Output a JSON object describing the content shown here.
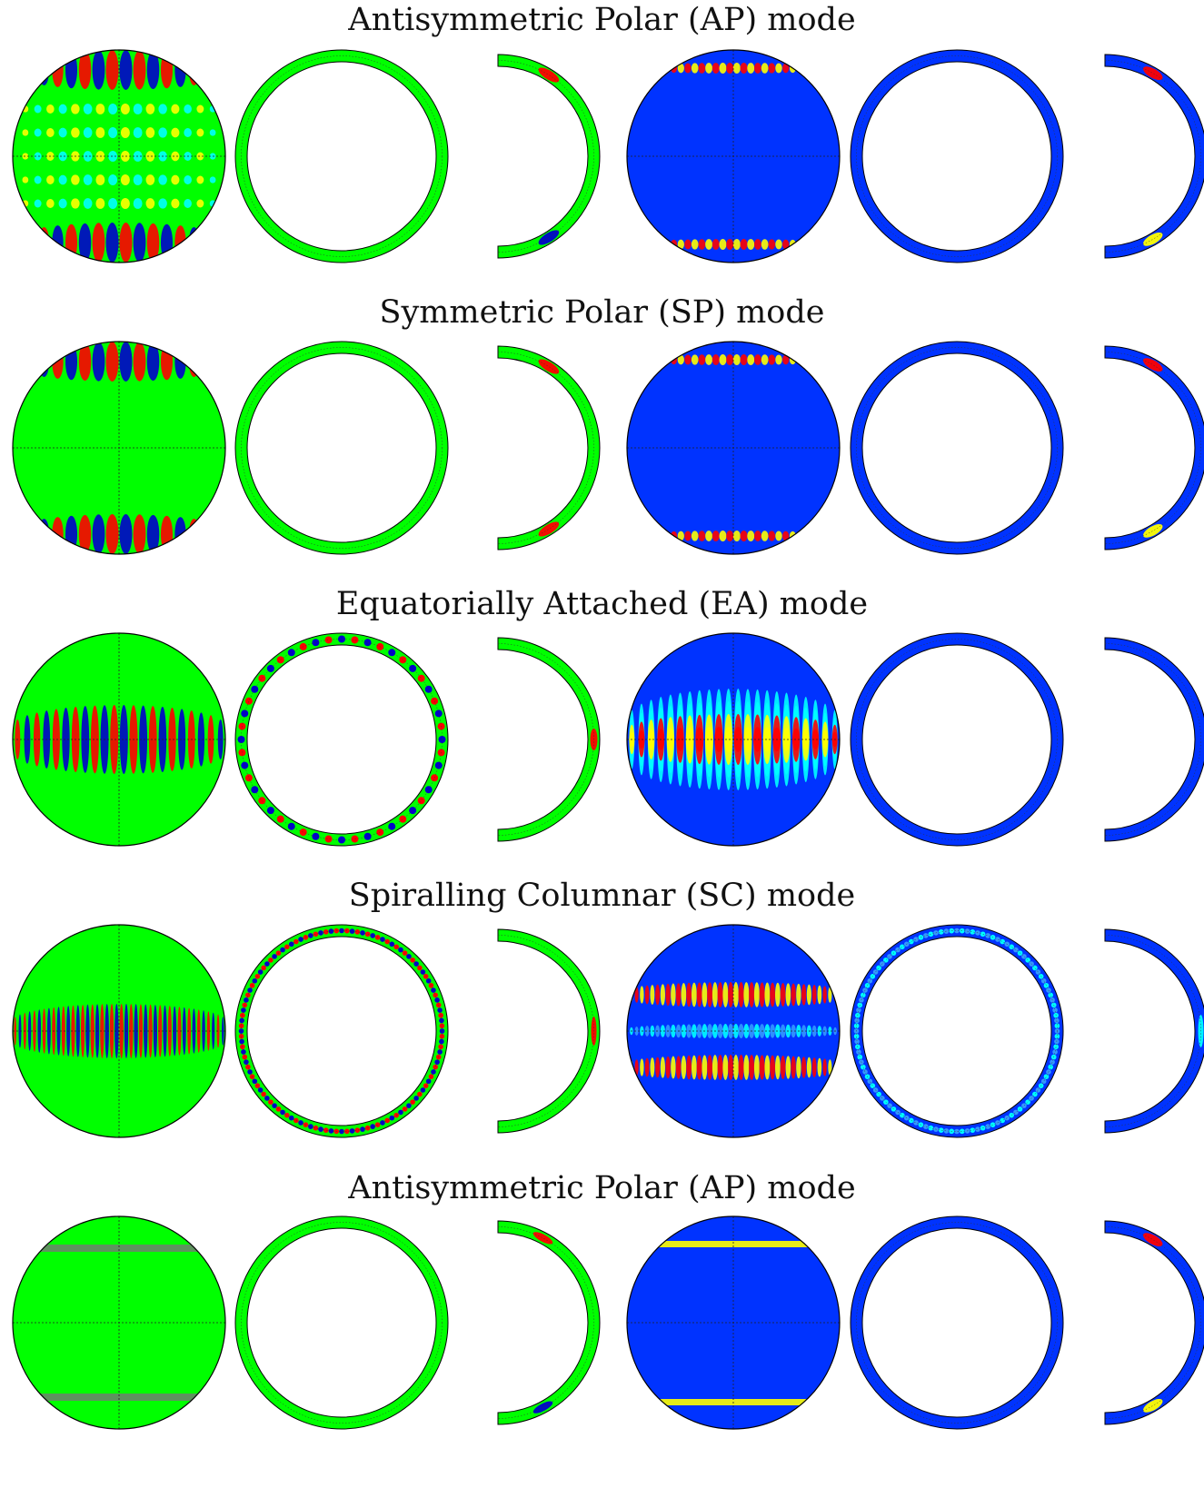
{
  "rows": [
    {
      "title": "Antisymmetric Polar (AP) mode",
      "pattern": "ap1"
    },
    {
      "title": "Symmetric Polar (SP) mode",
      "pattern": "sp"
    },
    {
      "title": "Equatorially Attached (EA) mode",
      "pattern": "ea"
    },
    {
      "title": "Spiralling Columnar (SC) mode",
      "pattern": "sc"
    },
    {
      "title": "Antisymmetric Polar (AP) mode",
      "pattern": "ap2"
    }
  ],
  "colors": {
    "green": "#00ff00",
    "blue": "#0033ff",
    "red": "#ff0000",
    "yellow": "#ffff00",
    "cyan": "#00ffff",
    "dark_blue": "#0000cc",
    "outline": "#000000"
  }
}
